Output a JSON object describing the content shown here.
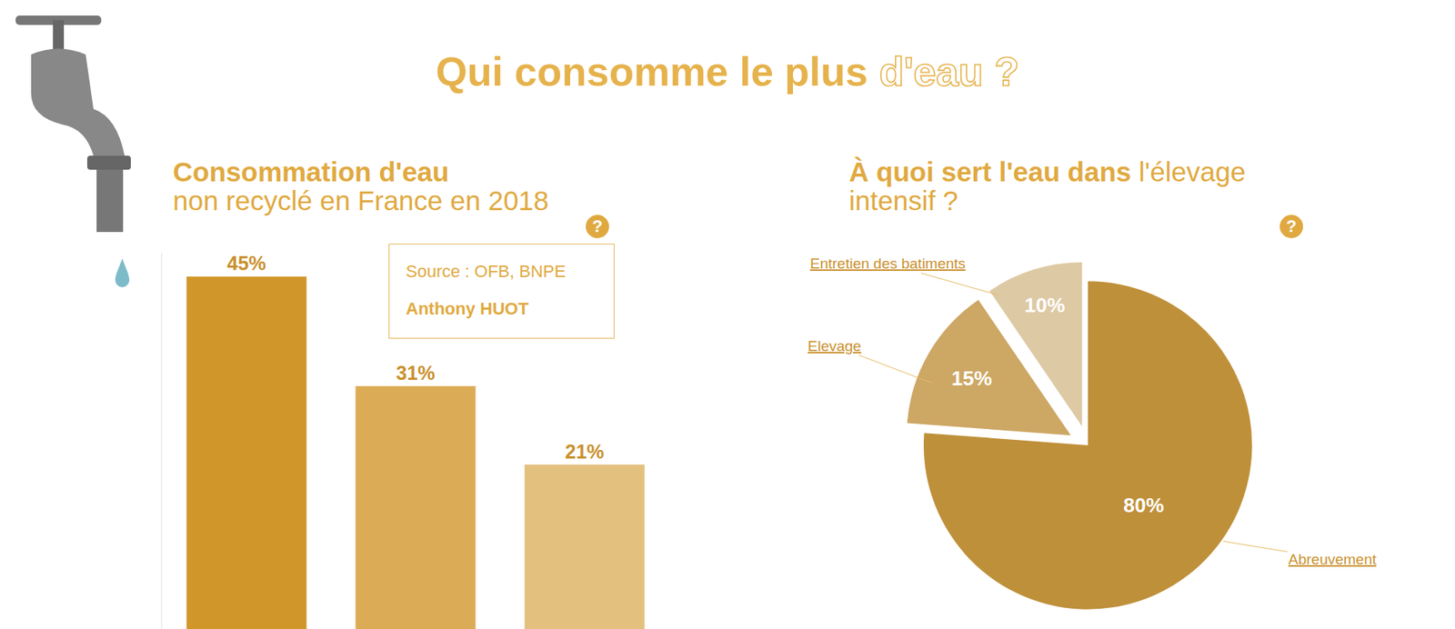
{
  "title": "Qui consomme le plus",
  "title_highlight": "d'eau ?",
  "help_icon": "?",
  "source": "Source : OFB, BNPE",
  "author": "Anthony HUOT",
  "chart_data": [
    {
      "type": "bar",
      "title": "Consommation d'eau",
      "subtitle": "non recyclé en France en 2018",
      "categories": [
        null,
        null,
        null
      ],
      "values": [
        45,
        31,
        21
      ],
      "value_labels": [
        "45%",
        "31%",
        "21%"
      ],
      "colors": [
        "#D0962A",
        "#DCAB55",
        "#E3C07E"
      ],
      "ylim": [
        0,
        48
      ],
      "yticks": [],
      "tick_labels": false,
      "data_labels": true,
      "grid": false
    },
    {
      "type": "pie",
      "title": "À quoi sert l'eau dans",
      "subtitle": "l'élevage intensif ?",
      "categories": [
        "Abreuvement",
        "Elevage",
        "Entretien des batiments"
      ],
      "values": [
        80,
        15,
        10
      ],
      "value_labels": [
        "80%",
        "15%",
        "10%"
      ],
      "colors": [
        "#BF903A",
        "#CDA764",
        "#DEC9A5"
      ],
      "data_labels": true
    }
  ]
}
